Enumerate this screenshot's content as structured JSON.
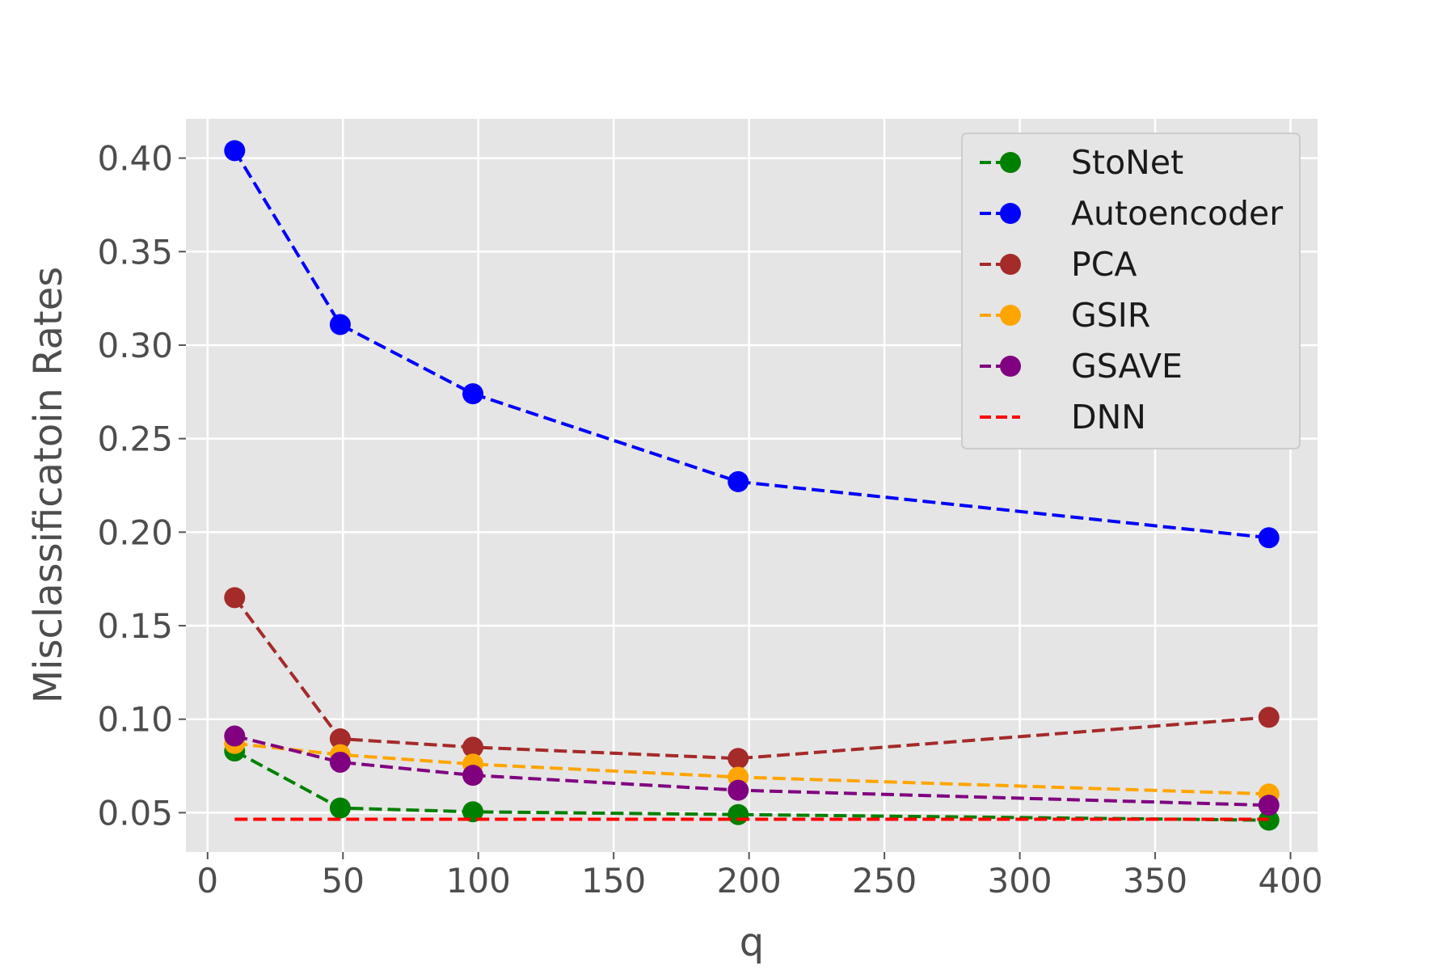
{
  "chart_data": {
    "type": "line",
    "title": "",
    "xlabel": "q",
    "ylabel": "Misclassificatoin Rates",
    "xlim": [
      -8,
      410
    ],
    "ylim": [
      0.029,
      0.421
    ],
    "xticks": [
      0,
      50,
      100,
      150,
      200,
      250,
      300,
      350,
      400
    ],
    "yticks": [
      0.05,
      0.1,
      0.15,
      0.2,
      0.25,
      0.3,
      0.35,
      0.4
    ],
    "xtick_labels": [
      "0",
      "50",
      "100",
      "150",
      "200",
      "250",
      "300",
      "350",
      "400"
    ],
    "ytick_labels": [
      "0.05",
      "0.10",
      "0.15",
      "0.20",
      "0.25",
      "0.30",
      "0.35",
      "0.40"
    ],
    "grid": true,
    "legend_position": "upper right",
    "x": [
      10,
      49,
      98,
      196,
      392
    ],
    "series": [
      {
        "name": "StoNet",
        "color": "#008000",
        "marker": true,
        "values": [
          0.083,
          0.0525,
          0.0505,
          0.049,
          0.046
        ]
      },
      {
        "name": "Autoencoder",
        "color": "#0000ff",
        "marker": true,
        "values": [
          0.404,
          0.311,
          0.274,
          0.227,
          0.197
        ]
      },
      {
        "name": "PCA",
        "color": "#a52a2a",
        "marker": true,
        "values": [
          0.165,
          0.0895,
          0.085,
          0.079,
          0.101
        ]
      },
      {
        "name": "GSIR",
        "color": "#ffa500",
        "marker": true,
        "values": [
          0.087,
          0.081,
          0.076,
          0.069,
          0.06
        ]
      },
      {
        "name": "GSAVE",
        "color": "#800080",
        "marker": true,
        "values": [
          0.091,
          0.077,
          0.07,
          0.062,
          0.054
        ]
      },
      {
        "name": "DNN",
        "color": "#ff0000",
        "marker": false,
        "values": [
          0.0465,
          0.0465,
          0.0465,
          0.0465,
          0.0465
        ]
      }
    ]
  }
}
